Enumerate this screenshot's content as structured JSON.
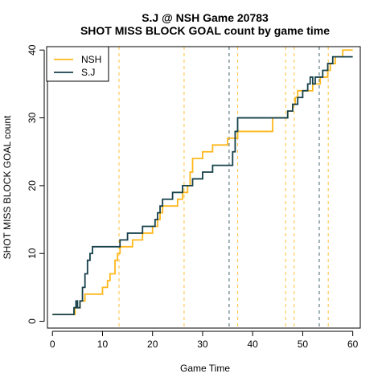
{
  "chart_data": {
    "type": "line",
    "step": true,
    "title": "S.J @ NSH Game 20783",
    "subtitle": "SHOT MISS BLOCK GOAL count by game time",
    "xlabel": "Game Time",
    "ylabel": "SHOT MISS BLOCK GOAL count",
    "xlim": [
      -1,
      61.5
    ],
    "ylim": [
      -1,
      40.5
    ],
    "xticks": [
      0,
      10,
      20,
      30,
      40,
      50,
      60
    ],
    "yticks": [
      0,
      10,
      20,
      30,
      40
    ],
    "legend_position": "top-left",
    "series": [
      {
        "name": "NSH",
        "color": "#FFB81C",
        "x": [
          0,
          4.5,
          5.5,
          6.5,
          10,
          11,
          11.5,
          12.5,
          13,
          13.5,
          16,
          18,
          20,
          21,
          21.5,
          22,
          25,
          26,
          27,
          27.5,
          28,
          30,
          32,
          35,
          37,
          44,
          47,
          48,
          48.5,
          49,
          52,
          53.5,
          55,
          55.5,
          56.5,
          58,
          58.5,
          60
        ],
        "y": [
          1,
          2,
          3,
          4,
          5,
          6,
          7,
          9,
          10,
          11,
          12,
          13,
          14,
          15,
          16,
          17,
          18,
          19,
          20,
          22,
          24,
          25,
          26,
          27,
          28,
          30,
          31,
          32,
          33,
          34,
          35,
          36,
          37,
          38,
          39,
          40,
          40,
          40
        ]
      },
      {
        "name": "S.J",
        "color": "#17414B",
        "x": [
          0,
          4.3,
          4.7,
          5,
          5.5,
          6,
          6.5,
          7,
          7.5,
          8,
          13.5,
          15,
          16,
          18,
          20.5,
          21,
          21.5,
          22,
          24,
          26,
          28,
          30,
          32,
          36,
          36.5,
          37,
          44,
          47,
          48,
          49,
          50,
          51,
          51.5,
          52,
          52.5,
          54,
          55,
          56,
          58,
          60
        ],
        "y": [
          1,
          2,
          3,
          2,
          3,
          5,
          7,
          9,
          10,
          11,
          12,
          13,
          13,
          14,
          15,
          16,
          17,
          18,
          19,
          20,
          21,
          22,
          23,
          25,
          28,
          30,
          30,
          31,
          32,
          33,
          34,
          35,
          36,
          35,
          36,
          37,
          38,
          39,
          39,
          39
        ]
      }
    ],
    "vlines": [
      {
        "x": 13.3,
        "series": "NSH"
      },
      {
        "x": 26.3,
        "series": "NSH"
      },
      {
        "x": 35.3,
        "series": "S.J"
      },
      {
        "x": 37.0,
        "series": "NSH"
      },
      {
        "x": 46.6,
        "series": "NSH"
      },
      {
        "x": 48.3,
        "series": "NSH"
      },
      {
        "x": 53.3,
        "series": "S.J"
      },
      {
        "x": 55.1,
        "series": "NSH"
      }
    ],
    "grid": false
  }
}
